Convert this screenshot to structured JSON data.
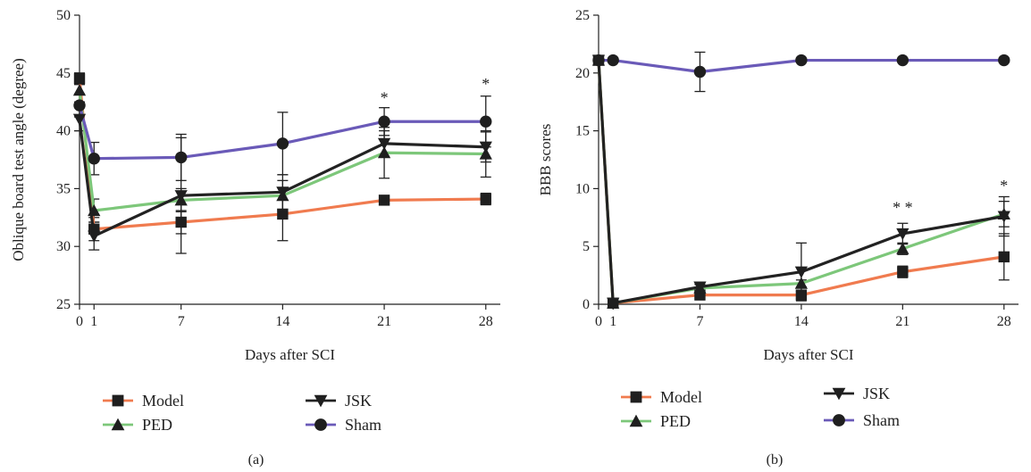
{
  "chart_data": [
    {
      "type": "line",
      "panel_label": "(a)",
      "xlabel": "Days after SCI",
      "ylabel": "Oblique board test angle (degree)",
      "x": [
        0,
        1,
        7,
        14,
        21,
        28
      ],
      "xticks": [
        0,
        1,
        7,
        14,
        21,
        28
      ],
      "yticks": [
        25,
        30,
        35,
        40,
        45,
        50
      ],
      "ylim": [
        25,
        50
      ],
      "xlim": [
        0,
        29
      ],
      "grid": false,
      "legend_position": "below",
      "series": [
        {
          "name": "Model",
          "color": "#f07b4f",
          "marker": "square",
          "values": [
            44.5,
            31.5,
            32.1,
            32.8,
            34.0,
            34.1
          ],
          "errors": [
            0.5,
            1.0,
            1.0,
            2.3,
            0.3,
            0.5
          ]
        },
        {
          "name": "PED",
          "color": "#7dc77a",
          "marker": "triangle-up",
          "values": [
            43.5,
            33.1,
            34.0,
            34.4,
            38.1,
            38.0
          ],
          "errors": [
            1.0,
            1.0,
            1.0,
            1.3,
            2.2,
            2.0
          ]
        },
        {
          "name": "JSK",
          "color": "#222222",
          "marker": "triangle-down",
          "values": [
            41.0,
            30.9,
            34.4,
            34.7,
            38.9,
            38.6
          ],
          "errors": [
            1.0,
            1.2,
            5.0,
            1.5,
            1.1,
            1.3
          ]
        },
        {
          "name": "Sham",
          "color": "#6a5ab8",
          "marker": "circle",
          "values": [
            42.2,
            37.6,
            37.7,
            38.9,
            40.8,
            40.8
          ],
          "errors": [
            1.0,
            1.4,
            2.0,
            2.7,
            1.2,
            2.2
          ]
        }
      ],
      "annotations": [
        {
          "x": 21,
          "y": 42.4,
          "text": "*"
        },
        {
          "x": 28,
          "y": 43.6,
          "text": "*"
        }
      ]
    },
    {
      "type": "line",
      "panel_label": "(b)",
      "xlabel": "Days after SCI",
      "ylabel": "BBB scores",
      "x": [
        0,
        1,
        7,
        14,
        21,
        28
      ],
      "xticks": [
        0,
        1,
        7,
        14,
        21,
        28
      ],
      "yticks": [
        0,
        5,
        10,
        15,
        20,
        25
      ],
      "ylim": [
        0,
        25
      ],
      "xlim": [
        0,
        29
      ],
      "grid": false,
      "legend_position": "below",
      "series": [
        {
          "name": "Model",
          "color": "#f07b4f",
          "marker": "square",
          "values": [
            21.1,
            0.1,
            0.8,
            0.8,
            2.8,
            4.1
          ],
          "errors": [
            0,
            0,
            0.3,
            0.3,
            0.5,
            2.0
          ]
        },
        {
          "name": "PED",
          "color": "#7dc77a",
          "marker": "triangle-up",
          "values": [
            21.1,
            0.1,
            1.4,
            1.8,
            4.8,
            7.8
          ],
          "errors": [
            0,
            0,
            0.3,
            0.3,
            0.5,
            1.1
          ]
        },
        {
          "name": "JSK",
          "color": "#222222",
          "marker": "triangle-down",
          "values": [
            21.1,
            0.1,
            1.5,
            2.8,
            6.1,
            7.6
          ],
          "errors": [
            0,
            0,
            0.3,
            2.5,
            0.9,
            1.7
          ]
        },
        {
          "name": "Sham",
          "color": "#6a5ab8",
          "marker": "circle",
          "values": [
            21.1,
            21.1,
            20.1,
            21.1,
            21.1,
            21.1
          ],
          "errors": [
            0,
            0,
            1.7,
            0,
            0,
            0
          ]
        }
      ],
      "annotations": [
        {
          "x": 21,
          "y": 7.9,
          "text": "* *"
        },
        {
          "x": 28,
          "y": 9.8,
          "text": "*"
        }
      ]
    }
  ]
}
